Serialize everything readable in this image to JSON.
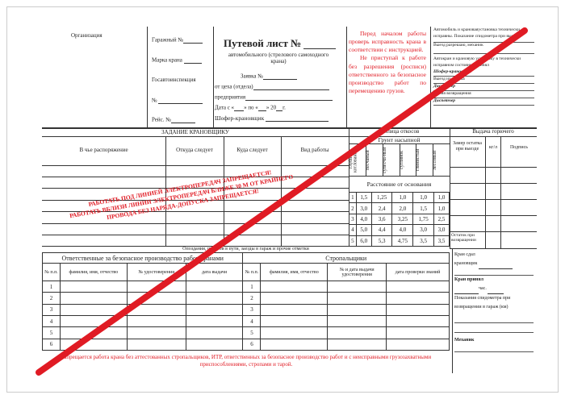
{
  "header": {
    "organization": "Организация",
    "garage_no": "Гаражный №",
    "crane_brand": "Марка крана",
    "gai": "Госавтоинспекция",
    "number": "№",
    "reg_no": "Рейс. №",
    "title": "Путевой лист №",
    "subtitle": "автомобильного (стрелового самоходного крана)",
    "request_no": "Заявка №",
    "from_dept": "от цеха (отдела)",
    "enterprise": "предприятия",
    "date_from": "Дата с «",
    "date_to": "» по «",
    "date_year": "»  20",
    "date_g": "г.",
    "driver": "Шофер-крановщик"
  },
  "warning_top": {
    "p1": "Перед началом работы проверь исправность крана в соответствии с инструкцией.",
    "p2": "Не приступай к работе без разрешения (росписи) ответственного за безопасное производство работ по перемещению грузов."
  },
  "right_top": {
    "l1": "Автомобиль и крановаяустановка технически исправны. Показание спидометра при выезде",
    "l2": "Выезд разрешаю, механик",
    "l3": "Автокран и крановую установку в технически исправном состоянии принял",
    "l4": "Шофер-крановщик",
    "l5": "Выезд из гаража",
    "l6": "Диспетчер",
    "l7": "Время возвращения",
    "l8": "Диспетчер"
  },
  "task": {
    "title": "ЗАДАНИЕ КРАНОВЩИКУ",
    "columns": [
      "В чье распоряжение",
      "Откуда следует",
      "Куда следует",
      "Вид работы"
    ]
  },
  "slopes": {
    "title": "Таблица откосов",
    "soil": "Грунт насыпной",
    "columns": [
      "глубина котлована м",
      "песчаный",
      "супесча-ный",
      "суглинок",
      "глинистый",
      "лессовый"
    ],
    "distance": "Расстояние от основания",
    "rows": [
      [
        "1",
        "1,5",
        "1,25",
        "1,0",
        "1,0",
        "1,0"
      ],
      [
        "2",
        "3,0",
        "2,4",
        "2,0",
        "1,5",
        "1,0"
      ],
      [
        "3",
        "4,0",
        "3,6",
        "3,25",
        "1,75",
        "2,5"
      ],
      [
        "4",
        "5,0",
        "4,4",
        "4,0",
        "3,0",
        "3,0"
      ],
      [
        "5",
        "6,0",
        "5,3",
        "4,75",
        "3,5",
        "3,5"
      ]
    ]
  },
  "fuel": {
    "title": "Выдача горючего",
    "columns": [
      "Замер остатка при выезде",
      "кг/л",
      "Подпись"
    ],
    "remainder": "Остаток при возвращении"
  },
  "marks": "Опоздания, простои в пути, заезды в гараж и прочие отметки",
  "responsible": {
    "title": "Ответственные за безопасное производство работ кранами",
    "columns": [
      "№ п.п.",
      "фамилия, имя, отчество",
      "№ удостоверения",
      "дата выдачи"
    ],
    "rows": [
      "1",
      "2",
      "3",
      "4",
      "5",
      "6"
    ]
  },
  "slingers": {
    "title": "Стропальщики",
    "columns": [
      "№ п.п.",
      "фамилия, имя, отчество",
      "№ и дата выдачи удостоверения",
      "дата проверки знаний"
    ],
    "rows": [
      "1",
      "2",
      "3",
      "4",
      "5",
      "6"
    ]
  },
  "right_bottom": {
    "l1": "Кран сдал",
    "l2": "крановщик",
    "l3": "Кран принял",
    "l4": "час.",
    "l5": "Показания спидометра при возвращении в гараж (км)",
    "l6": "Механик"
  },
  "warning_bottom": "Запрещается работа крана без аттестованных стропальщиков, ИТР, ответственных за безопасное производство работ и с неисправными грузозахватными приспособлениями, стропами и тарой.",
  "stamp": {
    "l1": "РАБОТАТЬ ПОД ЛИНИЕЙ ЭЛЕКТРОПЕРЕДАЧ ЗАПРЕЩАЕТСЯ!",
    "l2": "РАБОТАТЬ ВБЛИЗИ ЛИНИИ ЭЛЕКТРОПЕРЕДАЧ БЛИЖЕ 30 М ОТ КРАЙНЕГО",
    "l3": "ПРОВОДА БЕЗ НАРЯДА-ДОПУСКА ЗАПРЕЩАЕТСЯ!"
  },
  "colors": {
    "red": "#e01b24",
    "line": "#333333"
  }
}
